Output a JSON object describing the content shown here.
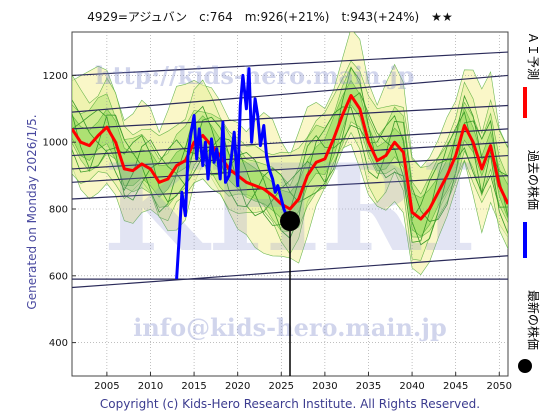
{
  "header": {
    "title": "4929=アジュバン　c:764　m:926(+21%)　t:943(+24%)　★★"
  },
  "side": {
    "left_text": "Generated on Monday 2026/1/5.",
    "legend": [
      {
        "label": "ＡＩ予測",
        "color": "#ff0000"
      },
      {
        "label": "過去の株価",
        "color": "#0000ff"
      },
      {
        "label": "最新の株価",
        "color": "#000000"
      }
    ]
  },
  "footer": {
    "copyright": "Copyright (c) Kids-Hero Research Institute. All Rights Reserved."
  },
  "watermarks": {
    "url": "http://kids-hero.main.jp",
    "logo": "KHRI",
    "email": "info@kids-hero.main.jp"
  },
  "chart_data": {
    "type": "line",
    "title": "4929=アジュバン　c:764　m:926(+21%)　t:943(+24%)　★★",
    "xlim": [
      2001,
      2051
    ],
    "ylim": [
      300,
      1330
    ],
    "x_ticks": [
      2005,
      2010,
      2015,
      2020,
      2025,
      2030,
      2035,
      2040,
      2045,
      2050
    ],
    "y_ticks": [
      400,
      600,
      800,
      1000,
      1200
    ],
    "grid": true,
    "latest_price": {
      "x": 2026.0,
      "y": 764
    },
    "series": [
      {
        "name": "ＡＩ予測",
        "color": "#ff0000",
        "x": [
          2001,
          2002,
          2003,
          2004,
          2005,
          2006,
          2007,
          2008,
          2009,
          2010,
          2011,
          2012,
          2013,
          2014,
          2015,
          2016,
          2017,
          2018,
          2019,
          2020,
          2021,
          2022,
          2023,
          2024,
          2025,
          2026,
          2027,
          2028,
          2029,
          2030,
          2031,
          2032,
          2033,
          2034,
          2035,
          2036,
          2037,
          2038,
          2039,
          2040,
          2041,
          2042,
          2043,
          2044,
          2045,
          2046,
          2047,
          2048,
          2049,
          2050,
          2051
        ],
        "values": [
          1040,
          1000,
          990,
          1020,
          1045,
          1000,
          920,
          915,
          935,
          920,
          880,
          890,
          930,
          945,
          1000,
          1020,
          990,
          960,
          920,
          900,
          880,
          870,
          860,
          840,
          815,
          800,
          830,
          900,
          940,
          950,
          1010,
          1080,
          1140,
          1100,
          1000,
          945,
          960,
          1000,
          970,
          790,
          770,
          800,
          850,
          900,
          960,
          1050,
          1000,
          920,
          990,
          870,
          815
        ]
      },
      {
        "name": "過去の株価",
        "color": "#0000ff",
        "x": [
          2013.0,
          2013.3,
          2013.6,
          2014.0,
          2014.3,
          2014.6,
          2015.0,
          2015.3,
          2015.6,
          2016.0,
          2016.3,
          2016.6,
          2017.0,
          2017.3,
          2017.6,
          2018.0,
          2018.3,
          2018.6,
          2019.0,
          2019.3,
          2019.6,
          2020.0,
          2020.3,
          2020.6,
          2021.0,
          2021.3,
          2021.6,
          2022.0,
          2022.3,
          2022.6,
          2023.0,
          2023.3,
          2023.6,
          2024.0,
          2024.3,
          2024.6,
          2025.0,
          2025.3,
          2025.6,
          2026.0
        ],
        "values": [
          590,
          720,
          850,
          780,
          960,
          1020,
          1080,
          950,
          1040,
          930,
          1000,
          890,
          1010,
          940,
          980,
          890,
          1060,
          880,
          900,
          960,
          1030,
          870,
          1110,
          1200,
          1100,
          1220,
          1000,
          1130,
          1080,
          990,
          1050,
          960,
          920,
          890,
          850,
          870,
          830,
          800,
          780,
          764
        ]
      }
    ]
  }
}
